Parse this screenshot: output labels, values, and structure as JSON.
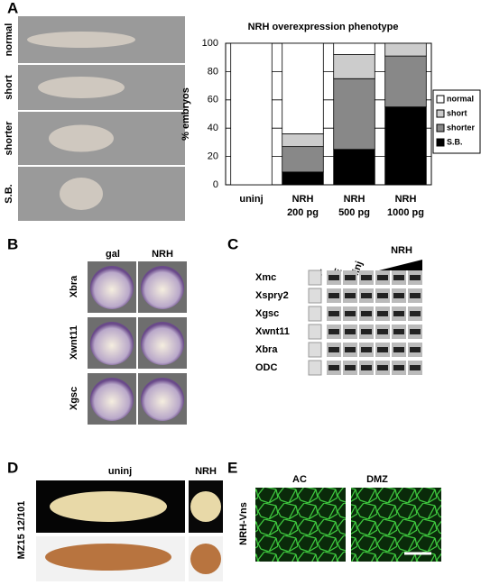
{
  "panels": {
    "a": {
      "letter": "A",
      "rows": [
        "normal",
        "short",
        "shorter",
        "S.B."
      ]
    },
    "b": {
      "letter": "B",
      "columns": [
        "gal",
        "NRH"
      ],
      "rows": [
        "Xbra",
        "Xwnt11",
        "Xgsc"
      ]
    },
    "c": {
      "letter": "C",
      "lanes": [
        "RT-",
        "WE",
        "uninj"
      ],
      "group": "NRH",
      "rows": [
        "Xmc",
        "Xspry2",
        "Xgsc",
        "Xwnt11",
        "Xbra",
        "ODC"
      ]
    },
    "d": {
      "letter": "D",
      "columns": [
        "uninj",
        "NRH"
      ],
      "side_label": "MZ15 12/101"
    },
    "e": {
      "letter": "E",
      "columns": [
        "AC",
        "DMZ"
      ],
      "side_label": "NRH-Vns"
    }
  },
  "chart_data": {
    "type": "stacked_bar",
    "title": "NRH overexpression phenotype",
    "y_label": "% embryos",
    "categories": [
      "uninj",
      "NRH 200 pg",
      "NRH 500 pg",
      "NRH 1000 pg"
    ],
    "series": [
      {
        "name": "normal",
        "color": "#ffffff",
        "values": [
          100,
          64,
          8,
          0
        ]
      },
      {
        "name": "short",
        "color": "#cccccc",
        "values": [
          0,
          9,
          17,
          9
        ]
      },
      {
        "name": "shorter",
        "color": "#888888",
        "values": [
          0,
          18,
          50,
          36
        ]
      },
      {
        "name": "S.B.",
        "color": "#000000",
        "values": [
          0,
          9,
          25,
          55
        ]
      }
    ],
    "ylim": [
      0,
      100
    ],
    "yticks": [
      0,
      20,
      40,
      60,
      80,
      100
    ],
    "grid": true,
    "legend": "right"
  }
}
